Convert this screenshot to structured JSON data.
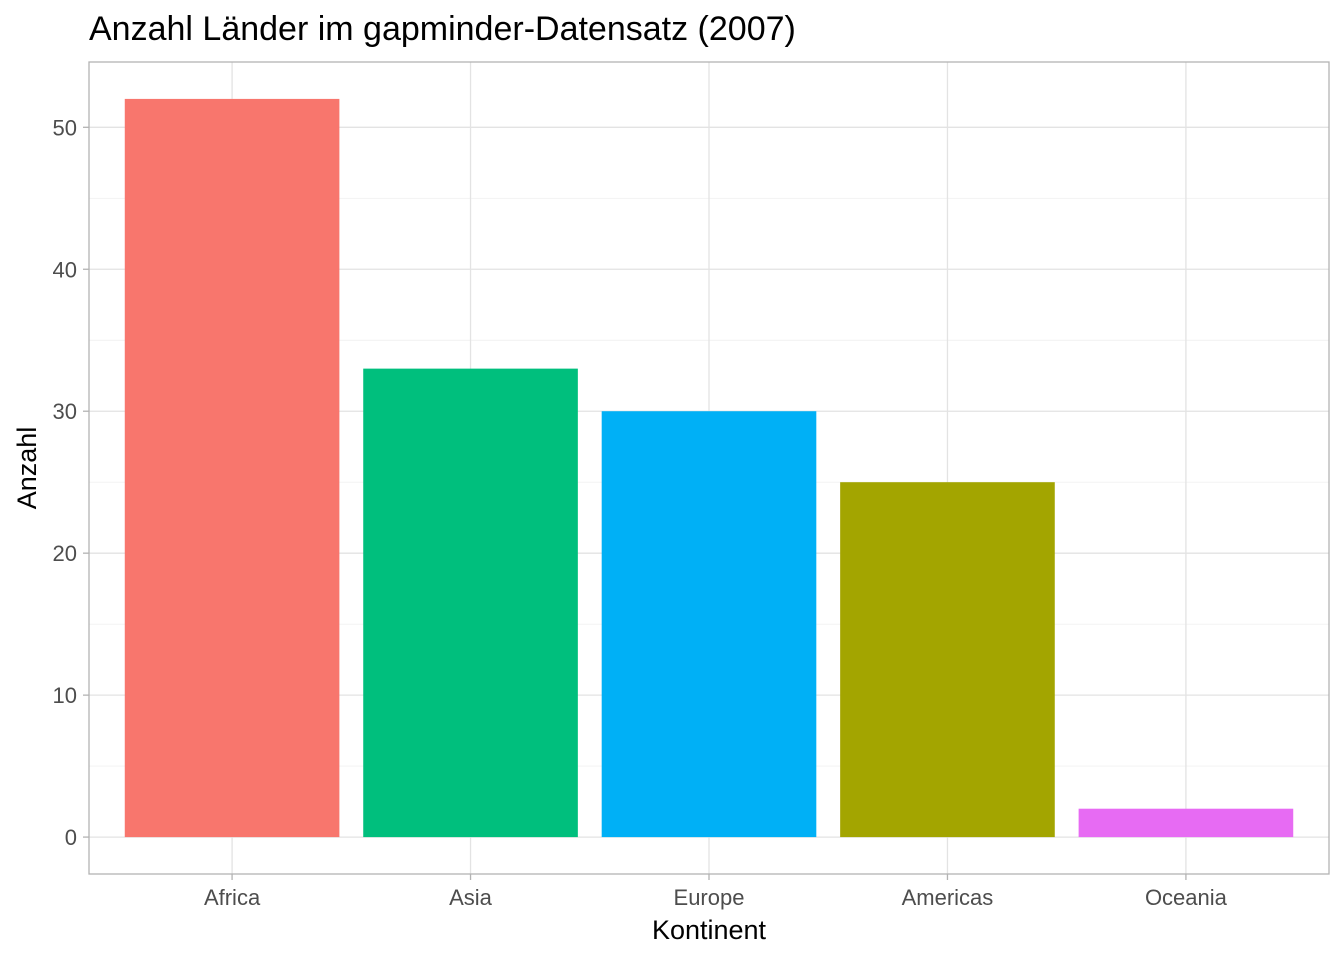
{
  "chart_data": {
    "type": "bar",
    "title": "Anzahl Länder im gapminder-Datensatz (2007)",
    "xlabel": "Kontinent",
    "ylabel": "Anzahl",
    "categories": [
      "Africa",
      "Asia",
      "Europe",
      "Americas",
      "Oceania"
    ],
    "values": [
      52,
      33,
      30,
      25,
      2
    ],
    "colors": [
      "#F8766D",
      "#00BF7D",
      "#00B0F6",
      "#A3A500",
      "#E76BF3"
    ],
    "yticks": [
      0,
      10,
      20,
      30,
      40,
      50
    ],
    "ylim": [
      -2.6,
      54.6
    ],
    "grid": true,
    "legend": "none"
  }
}
